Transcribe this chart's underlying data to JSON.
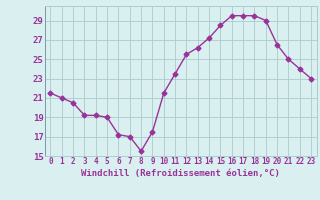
{
  "x": [
    0,
    1,
    2,
    3,
    4,
    5,
    6,
    7,
    8,
    9,
    10,
    11,
    12,
    13,
    14,
    15,
    16,
    17,
    18,
    19,
    20,
    21,
    22,
    23
  ],
  "y": [
    21.5,
    21.0,
    20.5,
    19.2,
    19.2,
    19.0,
    17.2,
    17.0,
    15.5,
    17.5,
    21.5,
    23.5,
    25.5,
    26.2,
    27.2,
    28.5,
    29.5,
    29.5,
    29.5,
    29.0,
    26.5,
    25.0,
    24.0,
    23.0
  ],
  "line_color": "#993399",
  "marker": "D",
  "markersize": 2.5,
  "linewidth": 1.0,
  "xlabel": "Windchill (Refroidissement éolien,°C)",
  "xlabel_fontsize": 6.5,
  "bg_color": "#daf0f0",
  "grid_color": "#aacccc",
  "axis_label_color": "#993399",
  "ylim": [
    15,
    30
  ],
  "yticks": [
    15,
    17,
    19,
    21,
    23,
    25,
    27,
    29
  ],
  "xticks": [
    0,
    1,
    2,
    3,
    4,
    5,
    6,
    7,
    8,
    9,
    10,
    11,
    12,
    13,
    14,
    15,
    16,
    17,
    18,
    19,
    20,
    21,
    22,
    23
  ],
  "xtick_fontsize": 5.5,
  "ytick_fontsize": 6.5
}
